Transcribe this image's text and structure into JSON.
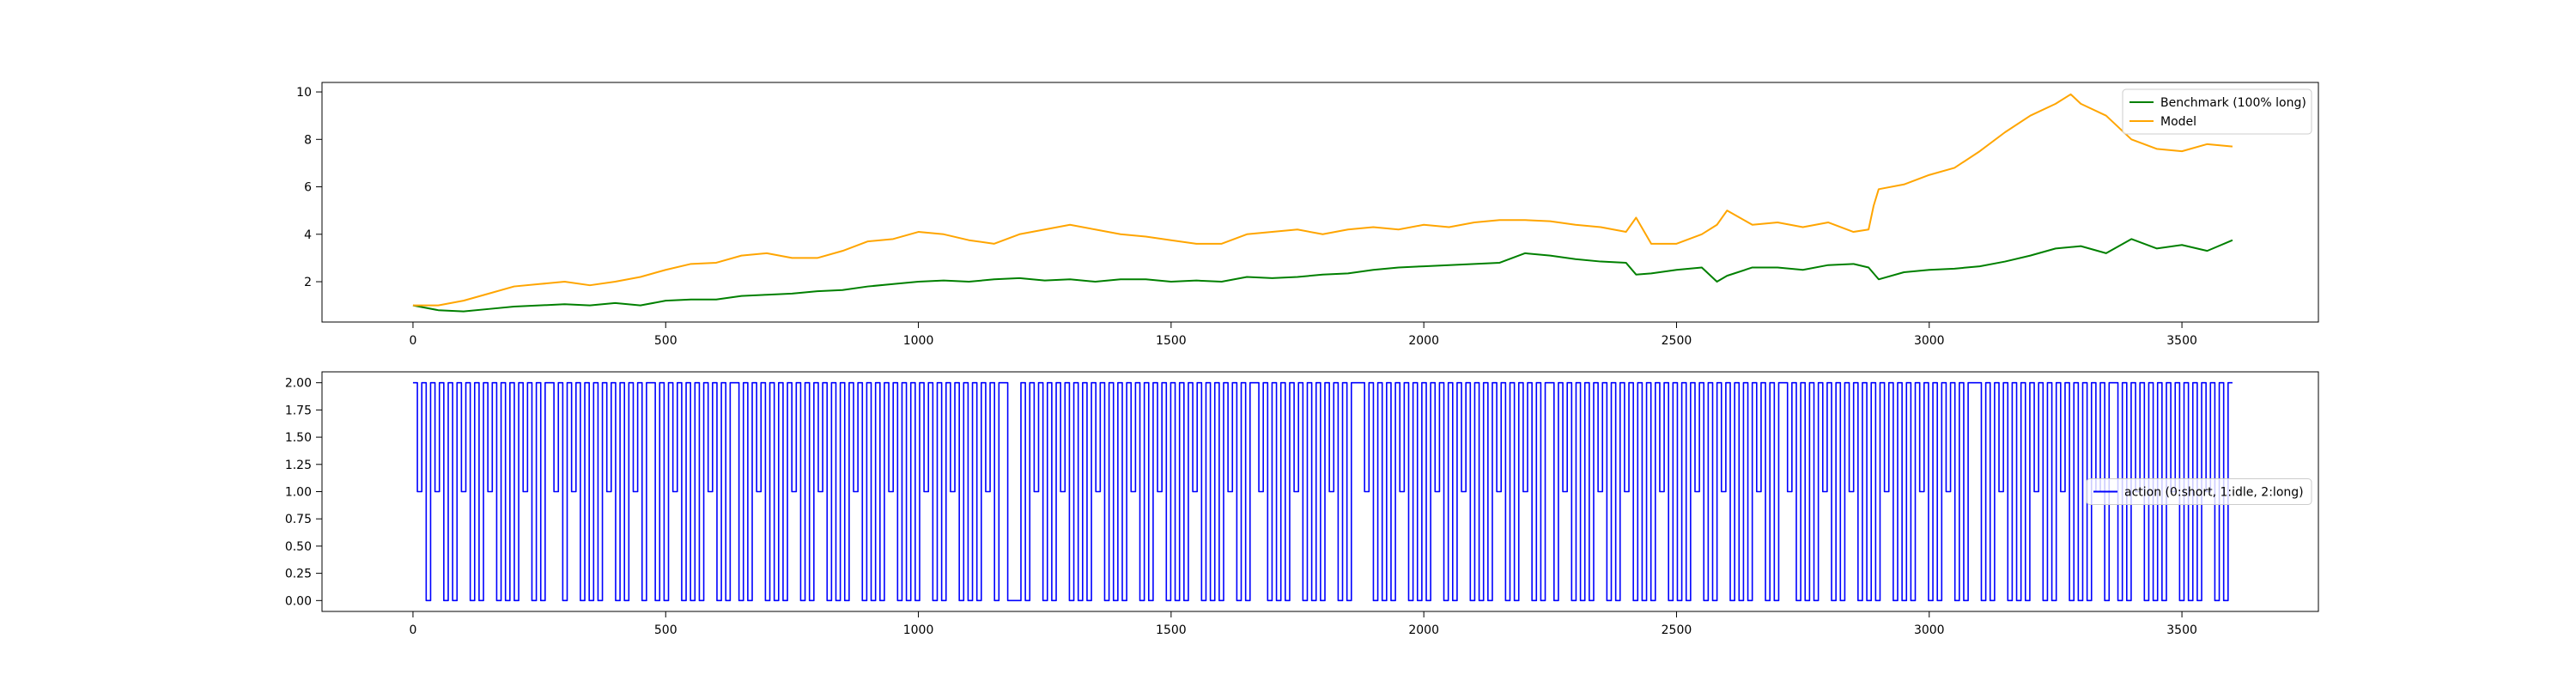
{
  "chart_data": [
    {
      "type": "line",
      "title": "",
      "xlabel": "",
      "ylabel": "",
      "xlim": [
        -180,
        3770
      ],
      "ylim": [
        0.3,
        10.4
      ],
      "xticks": [
        0,
        500,
        1000,
        1500,
        2000,
        2500,
        3000,
        3500
      ],
      "yticks": [
        2,
        4,
        6,
        8,
        10
      ],
      "grid": false,
      "legend_position": "top-right",
      "series": [
        {
          "name": "Benchmark (100% long)",
          "color": "#008000",
          "x": [
            0,
            50,
            100,
            150,
            200,
            250,
            300,
            350,
            400,
            450,
            500,
            550,
            600,
            650,
            700,
            750,
            800,
            850,
            900,
            950,
            1000,
            1050,
            1100,
            1150,
            1200,
            1250,
            1300,
            1350,
            1400,
            1450,
            1500,
            1550,
            1600,
            1650,
            1700,
            1750,
            1800,
            1850,
            1900,
            1950,
            2000,
            2050,
            2100,
            2150,
            2200,
            2250,
            2300,
            2350,
            2400,
            2420,
            2450,
            2500,
            2550,
            2580,
            2600,
            2650,
            2700,
            2750,
            2800,
            2850,
            2880,
            2900,
            2950,
            3000,
            3050,
            3100,
            3150,
            3200,
            3250,
            3300,
            3350,
            3400,
            3450,
            3500,
            3550,
            3600
          ],
          "values": [
            1.0,
            0.8,
            0.75,
            0.85,
            0.95,
            1.0,
            1.05,
            1.0,
            1.1,
            1.0,
            1.2,
            1.25,
            1.25,
            1.4,
            1.45,
            1.5,
            1.6,
            1.65,
            1.8,
            1.9,
            2.0,
            2.05,
            2.0,
            2.1,
            2.15,
            2.05,
            2.1,
            2.0,
            2.1,
            2.1,
            2.0,
            2.05,
            2.0,
            2.2,
            2.15,
            2.2,
            2.3,
            2.35,
            2.5,
            2.6,
            2.65,
            2.7,
            2.75,
            2.8,
            3.2,
            3.1,
            2.95,
            2.85,
            2.8,
            2.3,
            2.35,
            2.5,
            2.6,
            2.0,
            2.25,
            2.6,
            2.6,
            2.5,
            2.7,
            2.75,
            2.6,
            2.1,
            2.4,
            2.5,
            2.55,
            2.65,
            2.85,
            3.1,
            3.4,
            3.5,
            3.2,
            3.8,
            3.4,
            3.55,
            3.3,
            3.75
          ]
        },
        {
          "name": "Model",
          "color": "#ffa500",
          "x": [
            0,
            50,
            100,
            150,
            200,
            250,
            300,
            350,
            400,
            450,
            500,
            550,
            600,
            650,
            700,
            750,
            800,
            850,
            900,
            950,
            1000,
            1050,
            1100,
            1150,
            1200,
            1250,
            1300,
            1350,
            1400,
            1450,
            1500,
            1550,
            1600,
            1650,
            1700,
            1750,
            1800,
            1850,
            1900,
            1950,
            2000,
            2050,
            2100,
            2150,
            2200,
            2250,
            2300,
            2350,
            2400,
            2420,
            2450,
            2500,
            2550,
            2580,
            2600,
            2650,
            2700,
            2750,
            2800,
            2850,
            2880,
            2890,
            2900,
            2950,
            3000,
            3050,
            3100,
            3150,
            3200,
            3250,
            3280,
            3300,
            3350,
            3400,
            3450,
            3500,
            3550,
            3600
          ],
          "values": [
            1.0,
            1.0,
            1.2,
            1.5,
            1.8,
            1.9,
            2.0,
            1.85,
            2.0,
            2.2,
            2.5,
            2.75,
            2.8,
            3.1,
            3.2,
            3.0,
            3.0,
            3.3,
            3.7,
            3.8,
            4.1,
            4.0,
            3.75,
            3.6,
            4.0,
            4.2,
            4.4,
            4.2,
            4.0,
            3.9,
            3.75,
            3.6,
            3.6,
            4.0,
            4.1,
            4.2,
            4.0,
            4.2,
            4.3,
            4.2,
            4.4,
            4.3,
            4.5,
            4.6,
            4.6,
            4.55,
            4.4,
            4.3,
            4.1,
            4.7,
            3.6,
            3.6,
            4.0,
            4.4,
            5.0,
            4.4,
            4.5,
            4.3,
            4.5,
            4.1,
            4.2,
            5.2,
            5.9,
            6.1,
            6.5,
            6.8,
            7.5,
            8.3,
            9.0,
            9.5,
            9.9,
            9.5,
            9.0,
            8.0,
            7.6,
            7.5,
            7.8,
            7.7
          ]
        }
      ]
    },
    {
      "type": "line",
      "title": "",
      "xlabel": "",
      "ylabel": "",
      "xlim": [
        -180,
        3770
      ],
      "ylim": [
        -0.1,
        2.1
      ],
      "xticks": [
        0,
        500,
        1000,
        1500,
        2000,
        2500,
        3000,
        3500
      ],
      "yticks": [
        0.0,
        0.25,
        0.5,
        0.75,
        1.0,
        1.25,
        1.5,
        1.75,
        2.0
      ],
      "ytick_labels": [
        "0.00",
        "0.25",
        "0.50",
        "0.75",
        "1.00",
        "1.25",
        "1.50",
        "1.75",
        "2.00"
      ],
      "grid": false,
      "legend_position": "center-right",
      "series": [
        {
          "name": "action (0:short, 1:idle, 2:long)",
          "color": "#0000ff",
          "x_start": 0,
          "x_end": 3600,
          "values": [
            2,
            1,
            2,
            0,
            2,
            1,
            2,
            0,
            2,
            0,
            2,
            1,
            2,
            0,
            2,
            0,
            2,
            1,
            2,
            0,
            2,
            0,
            2,
            0,
            2,
            1,
            2,
            0,
            2,
            0,
            2,
            2,
            1,
            2,
            0,
            2,
            1,
            2,
            0,
            2,
            0,
            2,
            0,
            2,
            1,
            2,
            0,
            2,
            0,
            2,
            1,
            2,
            0,
            2,
            2,
            0,
            2,
            0,
            2,
            1,
            2,
            0,
            2,
            0,
            2,
            0,
            2,
            1,
            2,
            0,
            2,
            0,
            2,
            2,
            0,
            2,
            0,
            2,
            1,
            2,
            0,
            2,
            0,
            2,
            0,
            2,
            1,
            2,
            0,
            2,
            0,
            2,
            1,
            2,
            0,
            2,
            0,
            2,
            0,
            2,
            1,
            2,
            0,
            2,
            0,
            2,
            0,
            2,
            1,
            2,
            0,
            2,
            0,
            2,
            0,
            2,
            1,
            2,
            0,
            2,
            0,
            2,
            1,
            2,
            0,
            2,
            0,
            2,
            0,
            2,
            1,
            2,
            0,
            2,
            2,
            0,
            0,
            0,
            2,
            0,
            2,
            1,
            2,
            0,
            2,
            0,
            2,
            1,
            2,
            0,
            2,
            0,
            2,
            0,
            2,
            1,
            2,
            0,
            2,
            0,
            2,
            0,
            2,
            1,
            2,
            0,
            2,
            0,
            2,
            1,
            2,
            0,
            2,
            0,
            2,
            0,
            2,
            1,
            2,
            0,
            2,
            0,
            2,
            0,
            2,
            1,
            2,
            0,
            2,
            0,
            2,
            2,
            1,
            2,
            0,
            2,
            0,
            2,
            0,
            2,
            1,
            2,
            0,
            2,
            0,
            2,
            0,
            2,
            1,
            2,
            0,
            2,
            0,
            2,
            2,
            2,
            1,
            2,
            0,
            2,
            0,
            2,
            0,
            2,
            1,
            2,
            0,
            2,
            0,
            2,
            0,
            2,
            1,
            2,
            0,
            2,
            0,
            2,
            1,
            2,
            0,
            2,
            0,
            2,
            0,
            2,
            1,
            2,
            0,
            2,
            0,
            2,
            1,
            2,
            0,
            2,
            0,
            2,
            2,
            0,
            2,
            1,
            2,
            0,
            2,
            0,
            2,
            0,
            2,
            1,
            2,
            0,
            2,
            0,
            2,
            1,
            2,
            0,
            2,
            0,
            2,
            0,
            2,
            1,
            2,
            0,
            2,
            0,
            2,
            0,
            2,
            1,
            2,
            0,
            2,
            0,
            2,
            1,
            2,
            0,
            2,
            0,
            2,
            0,
            2,
            1,
            2,
            0,
            2,
            0,
            2,
            2,
            1,
            2,
            0,
            2,
            0,
            2,
            0,
            2,
            1,
            2,
            0,
            2,
            0,
            2,
            1,
            2,
            0,
            2,
            0,
            2,
            0,
            2,
            1,
            2,
            0,
            2,
            0,
            2,
            0,
            2,
            1,
            2,
            0,
            2,
            0,
            2,
            1,
            2,
            0,
            2,
            0,
            2,
            2,
            2,
            0,
            2,
            0,
            2,
            1,
            2,
            0,
            2,
            0,
            2,
            0,
            2,
            1,
            2,
            0,
            2,
            0,
            2,
            1,
            2,
            0,
            2,
            0,
            2,
            0,
            2,
            1,
            2,
            0,
            2,
            2,
            0,
            2,
            0,
            2,
            1,
            2,
            0,
            2,
            0,
            2,
            0,
            2,
            1,
            2,
            0,
            2,
            0,
            2,
            0,
            2,
            1,
            2,
            0,
            2,
            0,
            2
          ]
        }
      ]
    }
  ]
}
